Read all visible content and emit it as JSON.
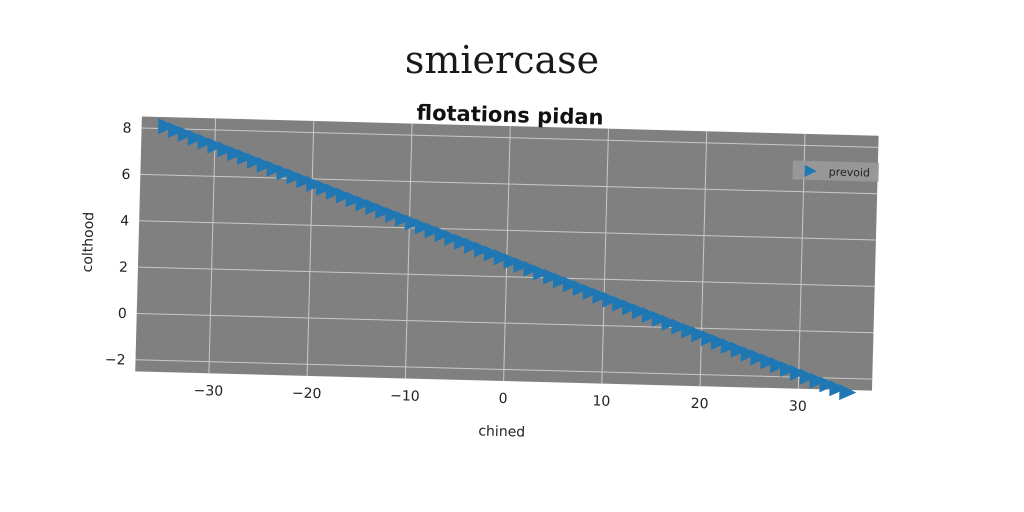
{
  "page": {
    "title": "smiercase"
  },
  "chart_data": {
    "type": "scatter",
    "title": "flotations pidan",
    "xlabel": "chined",
    "ylabel": "colthood",
    "xlim": [
      -37.5,
      37.5
    ],
    "ylim": [
      -2.5,
      8.5
    ],
    "xticks": [
      -30,
      -20,
      -10,
      0,
      10,
      20,
      30
    ],
    "yticks": [
      -2,
      0,
      2,
      4,
      6,
      8
    ],
    "grid": true,
    "background_color": "#808080",
    "series_color": "#1f77b4",
    "marker": "triangle-right",
    "legend_position": "top-right",
    "series": [
      {
        "name": "prevoid",
        "x_start": -35,
        "x_end": 35,
        "y_start": 8.1,
        "y_end": -2.6,
        "count": 70
      }
    ]
  }
}
